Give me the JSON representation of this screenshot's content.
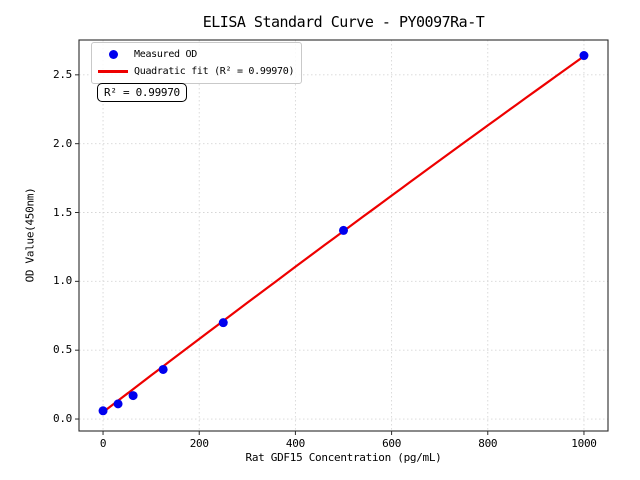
{
  "title": "ELISA Standard Curve - PY0097Ra-T",
  "axes": {
    "xlabel": "Rat GDF15 Concentration (pg/mL)",
    "ylabel": "OD Value(450nm)"
  },
  "legend": {
    "items": [
      {
        "label": "Measured OD",
        "marker": "blue-dot"
      },
      {
        "label": "Quadratic fit (R² = 0.99970)",
        "marker": "red-line"
      }
    ]
  },
  "annotation": {
    "text": "R² = 0.99970"
  },
  "colors": {
    "marker": "#0000ee",
    "fit_line": "#ee0000",
    "grid": "#d6d6d6",
    "frame": "#2b2b2b",
    "tick": "#2b2b2b"
  },
  "chart_data": {
    "type": "scatter",
    "title": "ELISA Standard Curve - PY0097Ra-T",
    "xlabel": "Rat GDF15 Concentration (pg/mL)",
    "ylabel": "OD Value(450nm)",
    "xlim": [
      -50,
      1050
    ],
    "ylim": [
      -0.087,
      2.753
    ],
    "grid": true,
    "legend_position": "upper left",
    "x_ticks": {
      "values": [
        0,
        200,
        400,
        600,
        800,
        1000
      ],
      "labels": [
        "0",
        "200",
        "400",
        "600",
        "800",
        "1000"
      ]
    },
    "y_ticks": {
      "values": [
        0,
        0.5,
        1.0,
        1.5,
        2.0,
        2.5
      ],
      "labels": [
        "0.0",
        "0.5",
        "1.0",
        "1.5",
        "2.0",
        "2.5"
      ]
    },
    "series": [
      {
        "name": "Measured OD",
        "type": "scatter",
        "color": "#0000ee",
        "x": [
          0,
          31.25,
          62.5,
          125,
          250,
          500,
          1000
        ],
        "y": [
          0.06,
          0.11,
          0.17,
          0.36,
          0.7,
          1.37,
          2.64
        ]
      },
      {
        "name": "Quadratic fit",
        "type": "line",
        "color": "#ee0000",
        "r_squared": "0.99970",
        "equation": {
          "intercept": 0.05,
          "linear": 0.002675,
          "quadratic": -9e-08
        },
        "x_start": 0,
        "x_end": 1000
      }
    ]
  }
}
